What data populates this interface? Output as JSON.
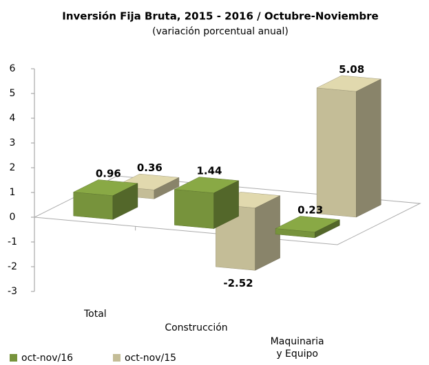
{
  "chart_data": {
    "type": "bar3d",
    "title": "Inversión Fija Bruta, 2015 - 2016 / Octubre-Noviembre",
    "subtitle": "(variación porcentual anual)",
    "categories": [
      "Total",
      "Construcción",
      "Maquinaria y Equipo"
    ],
    "series": [
      {
        "name": "oct-nov/16",
        "color": "#77933c",
        "values": [
          0.96,
          1.44,
          0.23
        ]
      },
      {
        "name": "oct-nov/15",
        "color": "#c4bd97",
        "values": [
          0.36,
          -2.52,
          5.08
        ]
      }
    ],
    "ylim": [
      -3,
      6
    ],
    "yticks": [
      -3,
      -2,
      -1,
      0,
      1,
      2,
      3,
      4,
      5,
      6
    ],
    "legend": "bottom-left"
  }
}
